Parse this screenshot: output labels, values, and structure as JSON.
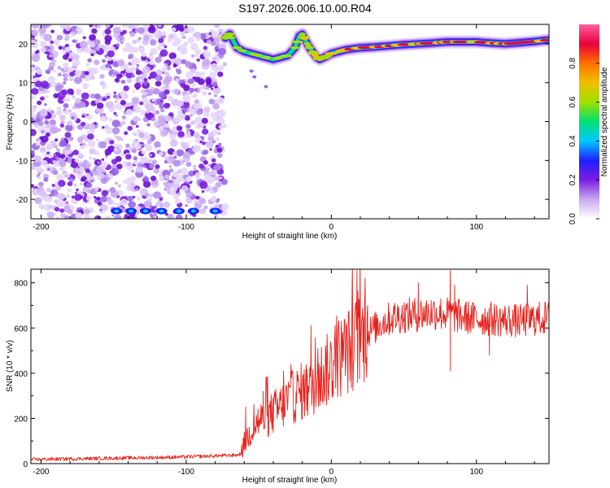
{
  "title": "S197.2026.006.10.00.R04",
  "chart_data": [
    {
      "type": "heatmap",
      "xlabel": "Height of straight line (km)",
      "ylabel": "Frequency (Hz)",
      "xlim": [
        -207,
        150
      ],
      "ylim": [
        -25,
        25
      ],
      "x_ticks": [
        -200,
        -100,
        0,
        100
      ],
      "y_ticks": [
        20,
        10,
        0,
        -10,
        -20
      ],
      "colorbar": {
        "label": "Normalized spectral amplitude",
        "range": [
          0,
          1
        ],
        "ticks": [
          0.0,
          0.2,
          0.4,
          0.6,
          0.8
        ],
        "colors": [
          "#ffffff",
          "#c8a8f0",
          "#7a1ee0",
          "#2020ff",
          "#00c8ff",
          "#00e070",
          "#a0e000",
          "#f0c000",
          "#ff7000",
          "#e8003a",
          "#ff5fa0"
        ]
      },
      "noise_region_x": [
        -207,
        -73
      ],
      "noise_floor_line_y_hz": -23,
      "ridge": {
        "x": [
          -73,
          -70,
          -65,
          -60,
          -55,
          -50,
          -45,
          -40,
          -35,
          -30,
          -25,
          -22,
          -20,
          -18,
          -15,
          -12,
          -10,
          -8,
          -5,
          0,
          10,
          20,
          30,
          40,
          50,
          60,
          70,
          80,
          90,
          100,
          110,
          120,
          130,
          140,
          150
        ],
        "y": [
          21.5,
          22.5,
          19,
          18,
          17.5,
          17,
          16.5,
          16,
          16.5,
          17,
          19,
          22,
          22.5,
          21,
          19,
          17.5,
          16.5,
          16,
          16.5,
          17.5,
          18.5,
          19,
          19.2,
          19.5,
          19.8,
          20,
          20.2,
          20.5,
          20.5,
          20.5,
          20.2,
          20,
          20.3,
          20.6,
          21
        ]
      }
    },
    {
      "type": "line",
      "xlabel": "Height of straight line (km)",
      "ylabel": "SNR (10 * v/v)",
      "xlim": [
        -207,
        150
      ],
      "ylim": [
        0,
        860
      ],
      "x_ticks": [
        -200,
        -100,
        0,
        100
      ],
      "y_ticks": [
        0,
        200,
        400,
        600,
        800
      ],
      "color": "#e8201a",
      "series": [
        {
          "x": [
            -207,
            -190,
            -170,
            -150,
            -130,
            -110,
            -90,
            -75,
            -65,
            -62,
            -60,
            -55,
            -50,
            -45,
            -40,
            -35,
            -30,
            -25,
            -20,
            -15,
            -10,
            -5,
            0,
            5,
            10,
            15,
            20,
            25,
            30,
            35,
            40,
            45,
            50,
            60,
            70,
            80,
            90,
            100,
            110,
            120,
            130,
            140,
            150
          ],
          "values": [
            18,
            20,
            22,
            24,
            26,
            28,
            32,
            35,
            38,
            45,
            90,
            150,
            190,
            200,
            225,
            250,
            280,
            300,
            320,
            330,
            370,
            400,
            430,
            470,
            490,
            520,
            550,
            580,
            600,
            625,
            640,
            650,
            655,
            660,
            670,
            660,
            650,
            640,
            640,
            635,
            630,
            640,
            645
          ]
        }
      ],
      "spikes": [
        {
          "x": -59,
          "value": 250
        },
        {
          "x": -47,
          "value": 320
        },
        {
          "x": -33,
          "value": 410
        },
        {
          "x": -14,
          "value": 610
        },
        {
          "x": 25,
          "value": 700
        },
        {
          "x": 60,
          "value": 800
        },
        {
          "x": 82,
          "value": 855
        },
        {
          "x": 85,
          "value": 790
        },
        {
          "x": 82,
          "value": 410,
          "dip": true
        },
        {
          "x": 109,
          "value": 480,
          "dip": true
        },
        {
          "x": 135,
          "value": 790
        }
      ]
    }
  ]
}
